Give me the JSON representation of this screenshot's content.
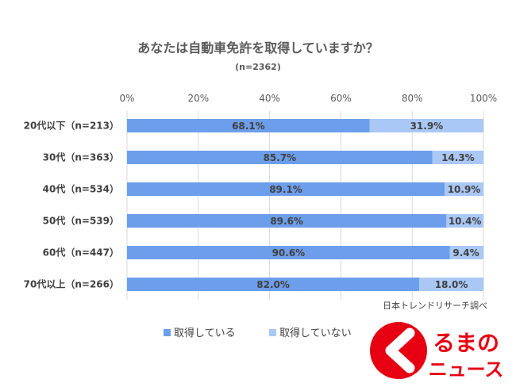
{
  "chart_data": {
    "type": "bar",
    "orientation": "horizontal",
    "stacked": true,
    "title": "あなたは自動車免許を取得していますか？",
    "subtitle": "(n=2362)",
    "categories": [
      "20代以下（n=213）",
      "30代（n=363）",
      "40代（n=534）",
      "50代（n=539）",
      "60代（n=447）",
      "70代以上（n=266）"
    ],
    "series": [
      {
        "name": "取得している",
        "values": [
          68.1,
          85.7,
          89.1,
          89.6,
          90.6,
          82.0
        ],
        "labels": [
          "68.1%",
          "85.7%",
          "89.1%",
          "89.6%",
          "90.6%",
          "82.0%"
        ],
        "color": "#6d9eeb"
      },
      {
        "name": "取得していない",
        "values": [
          31.9,
          14.3,
          10.9,
          10.4,
          9.4,
          18.0
        ],
        "labels": [
          "31.9%",
          "14.3%",
          "10.9%",
          "10.4%",
          "9.4%",
          "18.0%"
        ],
        "color": "#a9c8f5"
      }
    ],
    "xlim": [
      0,
      100
    ],
    "x_ticks": [
      "0%",
      "20%",
      "40%",
      "60%",
      "80%",
      "100%"
    ],
    "x_tick_values": [
      0,
      20,
      40,
      60,
      80,
      100
    ],
    "x_axis_position": "top",
    "grid": true,
    "legend_position": "bottom",
    "source": "日本トレンドリサーチ調べ"
  },
  "watermark": {
    "text_top": "るまの",
    "text_bottom": "ニュース",
    "color": "#e60012"
  }
}
